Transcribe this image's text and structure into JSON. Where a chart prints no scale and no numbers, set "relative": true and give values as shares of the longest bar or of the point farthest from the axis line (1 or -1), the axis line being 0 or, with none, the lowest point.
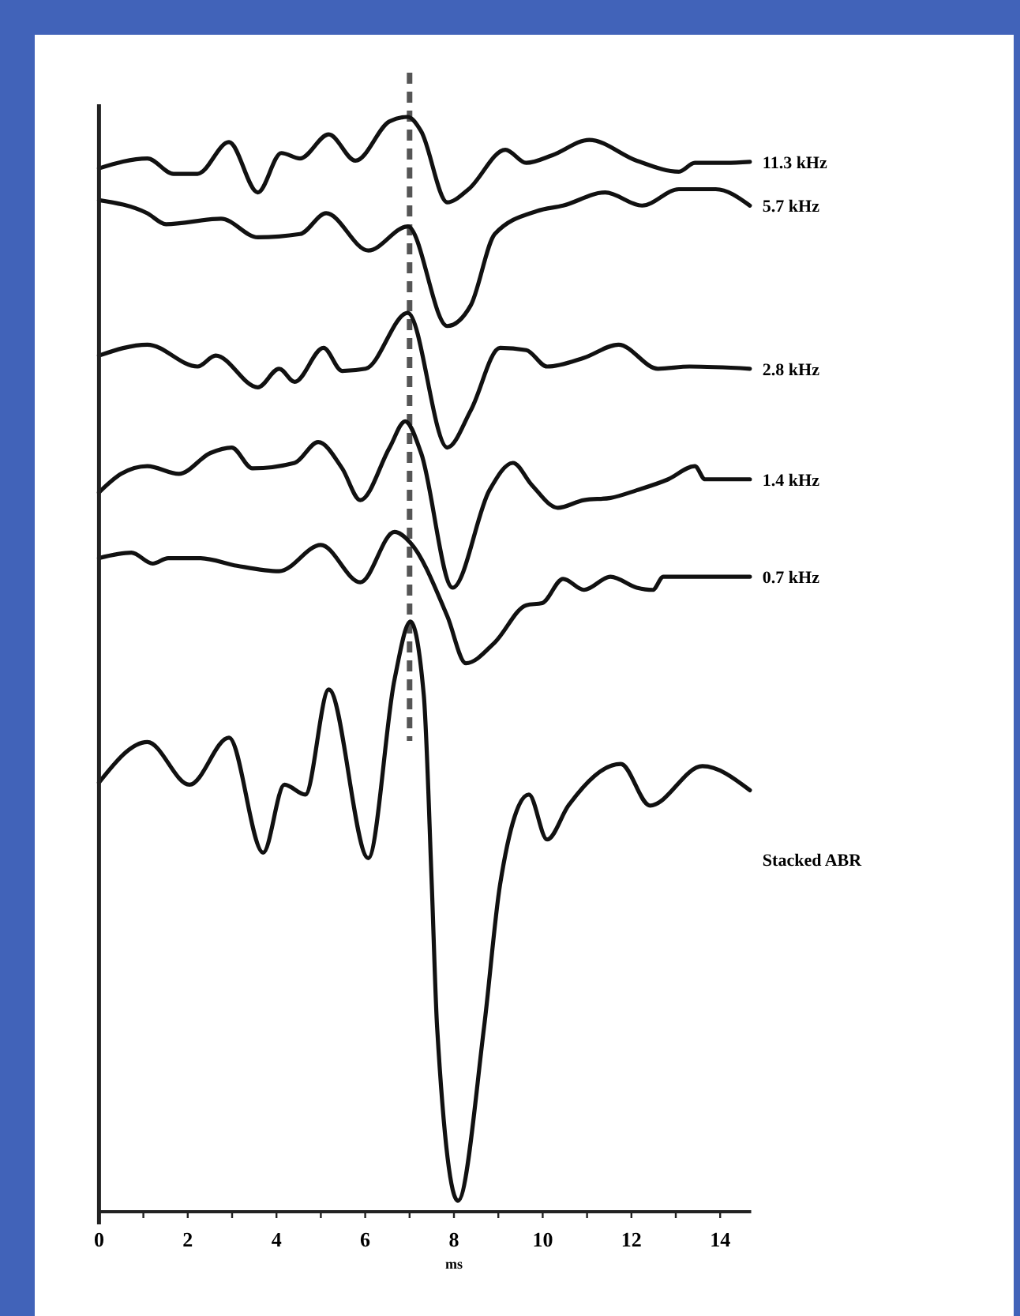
{
  "chart_data": {
    "type": "line",
    "relative": true,
    "xlabel": "ms",
    "xlim": [
      0,
      14.7
    ],
    "xticks": [
      0,
      {
        "value": 1,
        "label": null
      },
      2,
      {
        "value": 3,
        "label": null
      },
      4,
      {
        "value": 5,
        "label": null
      },
      6,
      {
        "value": 7,
        "label": null
      },
      8,
      {
        "value": 9,
        "label": null
      },
      10,
      {
        "value": 11,
        "label": null
      },
      12,
      {
        "value": 13,
        "label": null
      },
      14
    ],
    "grid": false,
    "legend": false,
    "marker": "none",
    "line_style": "solid",
    "ref_lines": [
      {
        "axis": "x",
        "value": 7,
        "color": "#555555",
        "line_style": "dashed"
      }
    ],
    "series": [
      {
        "name": "11.3 kHz",
        "color": "#111111",
        "x": [
          0,
          1.09,
          1.68,
          2.22,
          2.93,
          3.58,
          4.11,
          4.53,
          5.18,
          5.78,
          6.55,
          6.96,
          7.26,
          7.85,
          8.33,
          9.16,
          9.63,
          10.22,
          11.05,
          12.12,
          13.07,
          13.43,
          14.14,
          14.67
        ],
        "values": [
          0.953,
          0.962,
          0.948,
          0.948,
          0.977,
          0.931,
          0.967,
          0.962,
          0.984,
          0.96,
          0.996,
          1,
          0.987,
          0.922,
          0.934,
          0.97,
          0.958,
          0.965,
          0.979,
          0.96,
          0.95,
          0.958,
          0.958,
          0.959
        ]
      },
      {
        "name": "5.7 kHz",
        "color": "#111111",
        "x": [
          0,
          1.09,
          1.51,
          2.75,
          3.58,
          4.53,
          5.12,
          6.07,
          6.96,
          7.85,
          8.38,
          8.92,
          9.87,
          10.46,
          11.41,
          12.24,
          13.07,
          13.9,
          14.67
        ],
        "values": [
          0.924,
          0.912,
          0.902,
          0.907,
          0.89,
          0.893,
          0.912,
          0.878,
          0.9,
          0.809,
          0.828,
          0.893,
          0.914,
          0.919,
          0.931,
          0.919,
          0.934,
          0.934,
          0.919
        ]
      },
      {
        "name": "2.8 kHz",
        "color": "#111111",
        "x": [
          0,
          1.09,
          2.22,
          2.63,
          3.58,
          4.06,
          4.41,
          5.06,
          5.48,
          6.01,
          6.96,
          7.85,
          8.38,
          9.04,
          9.63,
          10.1,
          10.93,
          11.71,
          12.6,
          13.31,
          14.67
        ],
        "values": [
          0.782,
          0.792,
          0.772,
          0.782,
          0.753,
          0.77,
          0.758,
          0.789,
          0.768,
          0.77,
          0.821,
          0.698,
          0.732,
          0.789,
          0.787,
          0.772,
          0.78,
          0.792,
          0.77,
          0.772,
          0.77
        ]
      },
      {
        "name": "1.4 kHz",
        "color": "#111111",
        "x": [
          0,
          0.5,
          1.09,
          1.8,
          2.51,
          2.99,
          3.46,
          4.41,
          4.94,
          5.48,
          5.89,
          6.55,
          6.9,
          7.26,
          7.97,
          8.8,
          9.33,
          9.75,
          10.34,
          10.93,
          11.53,
          12.12,
          12.83,
          13.43,
          13.66,
          14.67
        ],
        "values": [
          0.657,
          0.674,
          0.681,
          0.674,
          0.693,
          0.698,
          0.679,
          0.684,
          0.703,
          0.679,
          0.65,
          0.698,
          0.722,
          0.693,
          0.57,
          0.659,
          0.684,
          0.664,
          0.643,
          0.65,
          0.652,
          0.659,
          0.669,
          0.681,
          0.669,
          0.669
        ]
      },
      {
        "name": "0.7 kHz",
        "color": "#111111",
        "x": [
          0,
          0.73,
          1.21,
          1.56,
          2.28,
          3.11,
          4.06,
          5,
          5.89,
          6.66,
          7.02,
          7.85,
          8.27,
          8.92,
          9.63,
          9.99,
          10.46,
          10.93,
          11.53,
          12.12,
          12.48,
          12.72,
          14.67
        ],
        "values": [
          0.597,
          0.602,
          0.592,
          0.597,
          0.597,
          0.59,
          0.585,
          0.609,
          0.575,
          0.621,
          0.611,
          0.544,
          0.501,
          0.52,
          0.554,
          0.556,
          0.578,
          0.568,
          0.58,
          0.57,
          0.568,
          0.58,
          0.58
        ]
      },
      {
        "name": "Stacked ABR",
        "color": "#111111",
        "x": [
          0,
          1.09,
          2.04,
          2.93,
          3.7,
          4.18,
          4.65,
          5.18,
          6.07,
          6.66,
          7.02,
          7.32,
          7.5,
          7.62,
          8.09,
          8.68,
          9.04,
          9.69,
          10.1,
          10.58,
          11.76,
          12.42,
          13.6,
          14.67
        ],
        "values": [
          0.392,
          0.429,
          0.39,
          0.433,
          0.328,
          0.39,
          0.381,
          0.477,
          0.323,
          0.486,
          0.539,
          0.472,
          0.299,
          0.169,
          0.01,
          0.169,
          0.299,
          0.381,
          0.34,
          0.371,
          0.409,
          0.371,
          0.407,
          0.385
        ]
      }
    ]
  }
}
